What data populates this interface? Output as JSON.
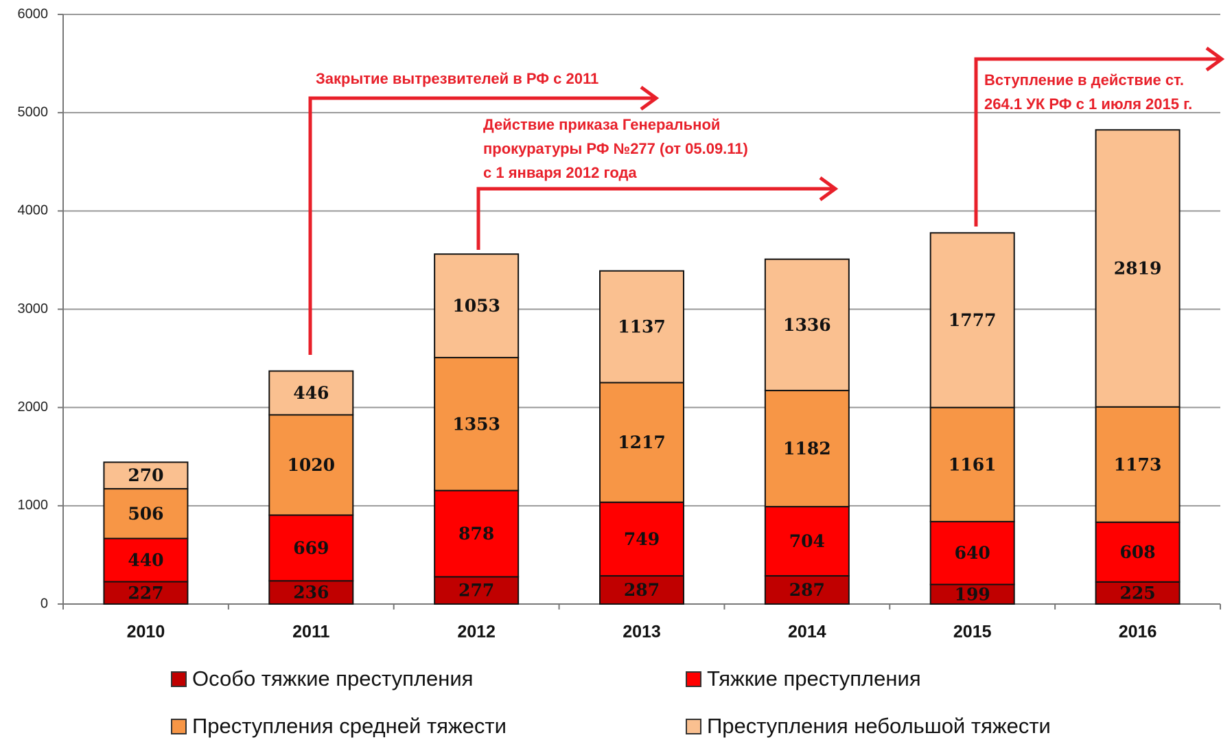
{
  "chart_data": {
    "type": "stacked_bar",
    "categories": [
      "2010",
      "2011",
      "2012",
      "2013",
      "2014",
      "2015",
      "2016"
    ],
    "series": [
      {
        "name": "Особо тяжкие преступления",
        "color": "#c00000",
        "values": [
          227,
          236,
          277,
          287,
          287,
          199,
          225
        ]
      },
      {
        "name": "Тяжкие преступления",
        "color": "#ff0000",
        "values": [
          440,
          669,
          878,
          749,
          704,
          640,
          608
        ]
      },
      {
        "name": "Преступления средней тяжести",
        "color": "#f79646",
        "values": [
          506,
          1020,
          1353,
          1217,
          1182,
          1161,
          1173
        ]
      },
      {
        "name": "Преступления небольшой тяжести",
        "color": "#fac090",
        "values": [
          270,
          446,
          1053,
          1137,
          1336,
          1777,
          2819
        ]
      }
    ],
    "ylim": [
      0,
      6000
    ],
    "yticks": [
      0,
      1000,
      2000,
      3000,
      4000,
      5000,
      6000
    ],
    "grid": true,
    "annotations": [
      {
        "lines": [
          "Закрытие вытрезвителей в РФ с 2011"
        ]
      },
      {
        "lines": [
          "Действие приказа Генеральной",
          "прокуратуры РФ №277 (от 05.09.11)",
          "с 1 января 2012 года"
        ]
      },
      {
        "lines": [
          "Вступление в действие ст.",
          "264.1 УК РФ с 1 июля 2015 г."
        ]
      }
    ]
  }
}
